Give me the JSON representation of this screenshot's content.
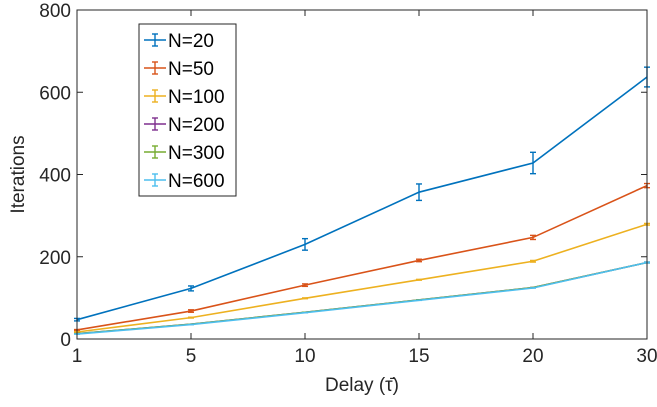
{
  "chart_data": {
    "type": "line",
    "title": "",
    "xlabel": "Delay (τ̄)",
    "ylabel": "Iterations",
    "x": [
      1,
      5,
      10,
      15,
      20,
      30
    ],
    "x_tick_labels": [
      "1",
      "5",
      "10",
      "15",
      "20",
      "30"
    ],
    "ylim": [
      0,
      800
    ],
    "y_ticks": [
      0,
      200,
      400,
      600,
      800
    ],
    "y_tick_labels": [
      "0",
      "200",
      "400",
      "600",
      "800"
    ],
    "grid": false,
    "legend_position": "top-left",
    "series": [
      {
        "name": "N=20",
        "color": "#0072BD",
        "values": [
          47,
          123,
          230,
          357,
          428,
          637
        ],
        "errors": [
          3,
          6,
          14,
          20,
          26,
          24
        ]
      },
      {
        "name": "N=50",
        "color": "#D95319",
        "values": [
          22,
          68,
          131,
          191,
          247,
          373
        ],
        "errors": [
          1,
          3,
          3,
          3,
          5,
          5
        ]
      },
      {
        "name": "N=100",
        "color": "#EDB120",
        "values": [
          17,
          52,
          99,
          144,
          189,
          279
        ],
        "errors": [
          1,
          1,
          1,
          1,
          2,
          2
        ]
      },
      {
        "name": "N=200",
        "color": "#7E2F8E",
        "values": [
          13,
          36,
          65,
          95,
          125,
          186
        ],
        "errors": [
          0,
          0,
          0,
          0,
          0,
          1
        ]
      },
      {
        "name": "N=300",
        "color": "#77AC30",
        "values": [
          13,
          36,
          65,
          95,
          125,
          186
        ],
        "errors": [
          0,
          0,
          0,
          0,
          0,
          1
        ]
      },
      {
        "name": "N=600",
        "color": "#4DBEEE",
        "values": [
          12,
          35,
          64,
          94,
          124,
          186
        ],
        "errors": [
          0,
          0,
          0,
          0,
          0,
          1
        ]
      }
    ]
  }
}
